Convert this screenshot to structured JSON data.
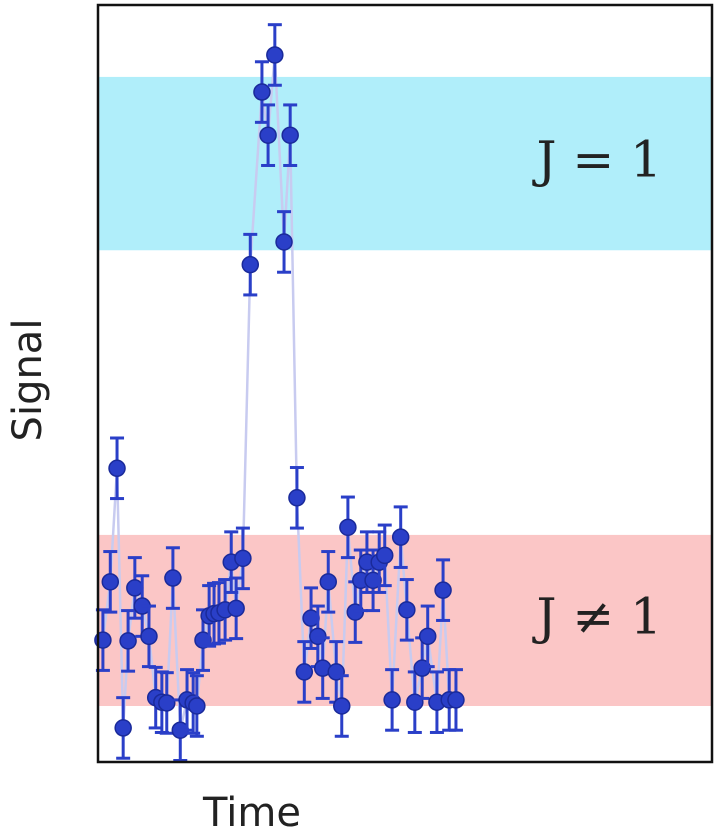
{
  "chart_data": {
    "type": "scatter",
    "xlabel": "Time",
    "ylabel": "Signal",
    "xlim": [
      0,
      100
    ],
    "ylim": [
      0,
      100
    ],
    "point_color": "#2a3fc8",
    "line_color": "#c8cbf0",
    "error": 4.0,
    "bands": [
      {
        "label": "J = 1",
        "range": [
          67.6,
          90.5
        ],
        "color": "#b0eefa"
      },
      {
        "label": "J ≠ 1",
        "range": [
          7.4,
          30.0
        ],
        "color": "#fbc6c6"
      }
    ],
    "x": [
      0.8,
      2.0,
      3.1,
      4.1,
      4.9,
      6.0,
      7.2,
      8.3,
      9.4,
      10.4,
      11.2,
      12.2,
      13.4,
      14.5,
      15.5,
      16.1,
      17.1,
      18.1,
      18.9,
      19.7,
      20.7,
      21.7,
      22.5,
      23.6,
      24.8,
      26.7,
      27.7,
      28.8,
      30.3,
      31.3,
      32.4,
      33.6,
      34.7,
      35.8,
      36.6,
      37.5,
      38.8,
      39.7,
      40.7,
      41.9,
      42.8,
      43.8,
      44.8,
      45.8,
      46.7,
      47.9,
      49.3,
      50.3,
      51.6,
      52.8,
      53.7,
      55.2,
      56.2,
      57.2,
      58.3
    ],
    "values": [
      16.1,
      23.8,
      38.8,
      4.5,
      16.0,
      23.0,
      20.6,
      16.6,
      8.5,
      7.9,
      7.8,
      24.3,
      4.2,
      8.2,
      7.8,
      7.4,
      16.1,
      19.3,
      19.6,
      19.7,
      20.1,
      26.4,
      20.3,
      26.9,
      65.7,
      88.5,
      82.8,
      93.4,
      68.7,
      82.8,
      34.9,
      11.9,
      19.0,
      16.6,
      12.4,
      23.8,
      11.9,
      7.4,
      31.0,
      19.8,
      24.0,
      26.4,
      24.0,
      26.4,
      27.3,
      8.2,
      29.7,
      20.1,
      7.9,
      12.4,
      16.6,
      7.9,
      22.7,
      8.2,
      8.2
    ]
  }
}
